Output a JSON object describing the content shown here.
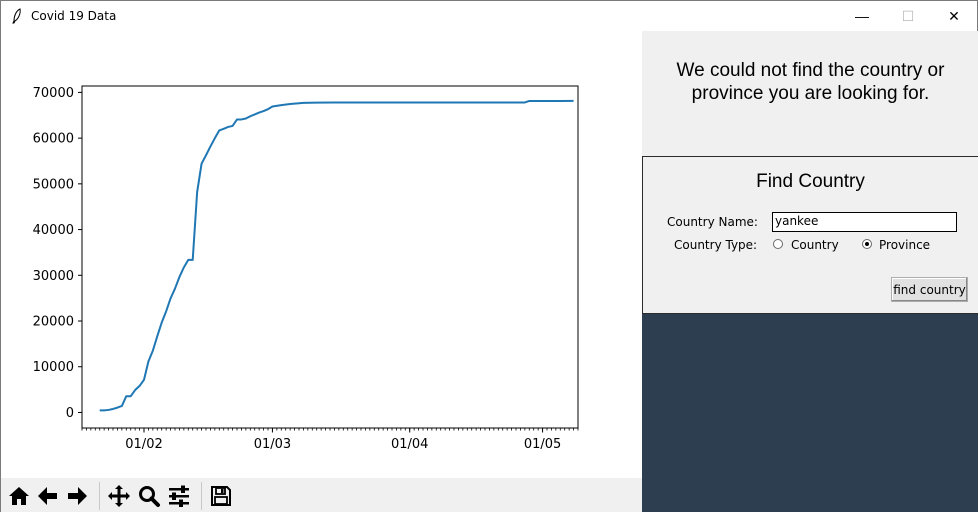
{
  "window": {
    "title": "Covid 19 Data",
    "minimize_glyph": "—",
    "maximize_glyph": "☐",
    "close_glyph": "✕"
  },
  "message": {
    "text": "We could not find the country or province you are looking for."
  },
  "find_country": {
    "title": "Find Country",
    "name_label": "Country Name:",
    "name_value": "yankee",
    "type_label": "Country Type:",
    "options": [
      "Country",
      "Province"
    ],
    "selected_option": "Province",
    "button_label": "find country"
  },
  "toolbar": {
    "buttons": [
      "home-icon",
      "back-icon",
      "forward-icon",
      "pan-icon",
      "zoom-icon",
      "configure-subplots-icon",
      "save-icon"
    ]
  },
  "colors": {
    "line": "#1f77b4",
    "dark_panel": "#2c3e50",
    "panel_bg": "#f0f0f0"
  },
  "chart_data": {
    "type": "line",
    "title": "",
    "xlabel": "",
    "ylabel": "",
    "x_is_date": true,
    "xticks": [
      "01/02",
      "01/03",
      "01/04",
      "01/05"
    ],
    "yticks": [
      0,
      10000,
      20000,
      30000,
      40000,
      50000,
      60000,
      70000
    ],
    "ylim": [
      -3400,
      71400
    ],
    "xlim": [
      "2020-01-18",
      "2020-05-09"
    ],
    "grid": false,
    "legend": false,
    "series": [
      {
        "x": [
          "2020-01-22",
          "2020-01-23",
          "2020-01-24",
          "2020-01-25",
          "2020-01-26",
          "2020-01-27",
          "2020-01-28",
          "2020-01-29",
          "2020-01-30",
          "2020-01-31",
          "2020-02-01",
          "2020-02-02",
          "2020-02-03",
          "2020-02-04",
          "2020-02-05",
          "2020-02-06",
          "2020-02-07",
          "2020-02-08",
          "2020-02-09",
          "2020-02-10",
          "2020-02-11",
          "2020-02-12",
          "2020-02-13",
          "2020-02-14",
          "2020-02-15",
          "2020-02-16",
          "2020-02-17",
          "2020-02-18",
          "2020-02-19",
          "2020-02-20",
          "2020-02-21",
          "2020-02-22",
          "2020-02-23",
          "2020-02-24",
          "2020-02-25",
          "2020-02-26",
          "2020-02-27",
          "2020-02-28",
          "2020-02-29",
          "2020-03-01",
          "2020-03-03",
          "2020-03-05",
          "2020-03-08",
          "2020-03-11",
          "2020-03-15",
          "2020-03-20",
          "2020-03-25",
          "2020-04-01",
          "2020-04-08",
          "2020-04-15",
          "2020-04-20",
          "2020-04-25",
          "2020-04-27",
          "2020-04-28",
          "2020-05-01",
          "2020-05-05",
          "2020-05-08"
        ],
        "y": [
          444,
          444,
          549,
          761,
          1058,
          1423,
          3554,
          3554,
          4903,
          5806,
          7153,
          11177,
          13522,
          16678,
          19665,
          22112,
          24953,
          27100,
          29631,
          31728,
          33366,
          33366,
          48206,
          54406,
          56249,
          58182,
          59989,
          61682,
          62031,
          62442,
          62662,
          64084,
          64084,
          64287,
          64786,
          65187,
          65596,
          65914,
          66337,
          66907,
          67217,
          67466,
          67707,
          67773,
          67800,
          67800,
          67801,
          67802,
          67803,
          67803,
          67803,
          67803,
          67803,
          68128,
          68128,
          68128,
          68134
        ]
      }
    ]
  }
}
